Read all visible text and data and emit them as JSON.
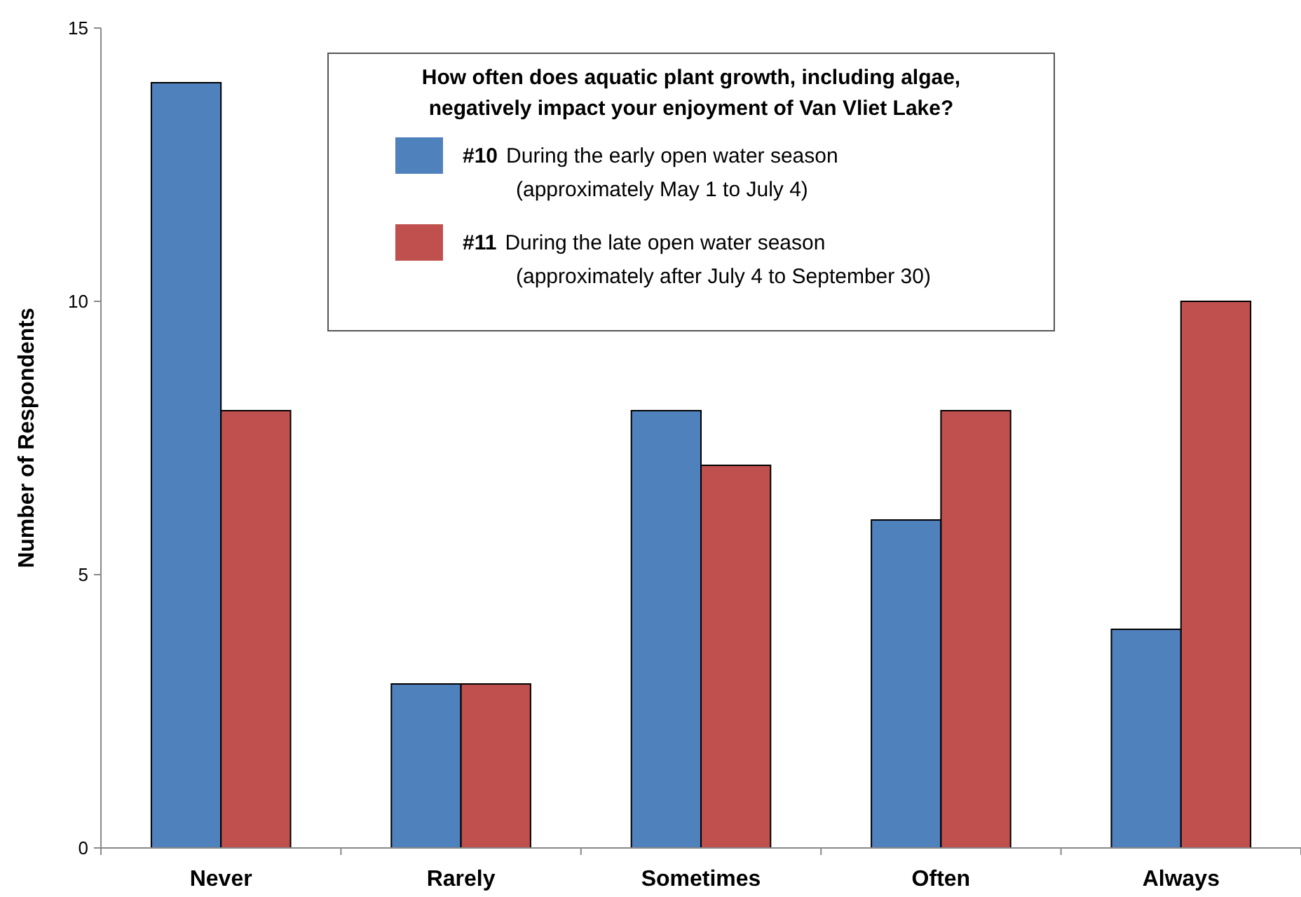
{
  "chart_data": {
    "type": "bar",
    "ylabel": "Number  of Respondents",
    "legend_title": "How often does aquatic plant growth, including algae, negatively impact your enjoyment of Van Vliet Lake?",
    "categories": [
      "Never",
      "Rarely",
      "Sometimes",
      "Often",
      "Always"
    ],
    "series": [
      {
        "name": "#10 During the early open water season (approximately May 1 to July 4)",
        "color": "#4f81bd",
        "values": [
          14,
          3,
          8,
          6,
          4
        ]
      },
      {
        "name": "#11 During the late open water season (approximately after July 4 to September 30)",
        "color": "#c0504d",
        "values": [
          8,
          3,
          7,
          8,
          10
        ]
      }
    ],
    "ylim": [
      0,
      15
    ],
    "yticks": [
      0,
      5,
      10,
      15
    ],
    "grid": false,
    "legend": "top"
  }
}
